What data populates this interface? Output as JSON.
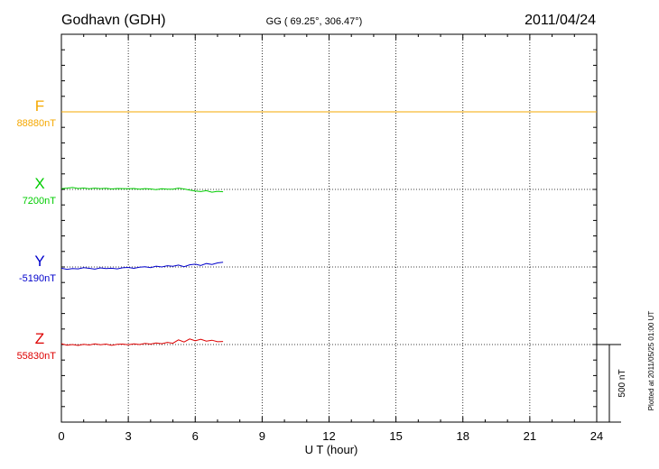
{
  "header": {
    "station": "Godhavn (GDH)",
    "coords": "GG ( 69.25°, 306.47°)",
    "date": "2011/04/24"
  },
  "footer": {
    "plotted": "Plotted at 2011/05/25 01:00 UT"
  },
  "chart_data": {
    "type": "line",
    "xlabel": "U T (hour)",
    "xlim": [
      0,
      24
    ],
    "x_ticks": [
      "0",
      "3",
      "6",
      "9",
      "12",
      "15",
      "18",
      "21",
      "24"
    ],
    "scale_bar_label": "500 nT",
    "scale_bar_nT": 500,
    "grid": true,
    "series": [
      {
        "name": "F",
        "baseline": "88880nT",
        "color": "#f5a800",
        "x": [
          0,
          24
        ],
        "y": [
          0,
          0
        ]
      },
      {
        "name": "X",
        "baseline": "7200nT",
        "color": "#00cc00",
        "x": [
          0,
          0.25,
          0.5,
          0.75,
          1.0,
          1.25,
          1.5,
          1.75,
          2.0,
          2.25,
          2.5,
          2.75,
          3.0,
          3.25,
          3.5,
          3.75,
          4.0,
          4.25,
          4.5,
          4.75,
          5.0,
          5.25,
          5.5,
          5.75,
          6.0,
          6.25,
          6.5,
          6.75,
          7.0,
          7.25
        ],
        "y": [
          5,
          8,
          12,
          6,
          9,
          4,
          8,
          5,
          7,
          3,
          6,
          5,
          4,
          6,
          2,
          5,
          3,
          -2,
          4,
          1,
          2,
          8,
          3,
          -4,
          -10,
          -14,
          -8,
          -18,
          -12,
          -15
        ]
      },
      {
        "name": "Y",
        "baseline": "-5190nT",
        "color": "#0000cc",
        "x": [
          0,
          0.25,
          0.5,
          0.75,
          1.0,
          1.25,
          1.5,
          1.75,
          2.0,
          2.25,
          2.5,
          2.75,
          3.0,
          3.25,
          3.5,
          3.75,
          4.0,
          4.25,
          4.5,
          4.75,
          5.0,
          5.25,
          5.5,
          5.75,
          6.0,
          6.25,
          6.5,
          6.75,
          7.0,
          7.25
        ],
        "y": [
          -8,
          -15,
          -10,
          -12,
          -4,
          -9,
          -14,
          -6,
          -10,
          -8,
          -12,
          -5,
          -3,
          -9,
          -2,
          2,
          -4,
          5,
          0,
          8,
          4,
          12,
          2,
          14,
          18,
          10,
          22,
          16,
          26,
          30
        ]
      },
      {
        "name": "Z",
        "baseline": "55830nT",
        "color": "#dd0000",
        "x": [
          0,
          0.25,
          0.5,
          0.75,
          1.0,
          1.25,
          1.5,
          1.75,
          2.0,
          2.25,
          2.5,
          2.75,
          3.0,
          3.25,
          3.5,
          3.75,
          4.0,
          4.25,
          4.5,
          4.75,
          5.0,
          5.25,
          5.5,
          5.75,
          6.0,
          6.25,
          6.5,
          6.75,
          7.0,
          7.25
        ],
        "y": [
          5,
          -4,
          0,
          -6,
          2,
          -3,
          4,
          -2,
          3,
          -5,
          1,
          3,
          -2,
          4,
          0,
          7,
          3,
          10,
          5,
          14,
          8,
          30,
          16,
          36,
          24,
          34,
          22,
          28,
          18,
          20
        ]
      }
    ]
  }
}
